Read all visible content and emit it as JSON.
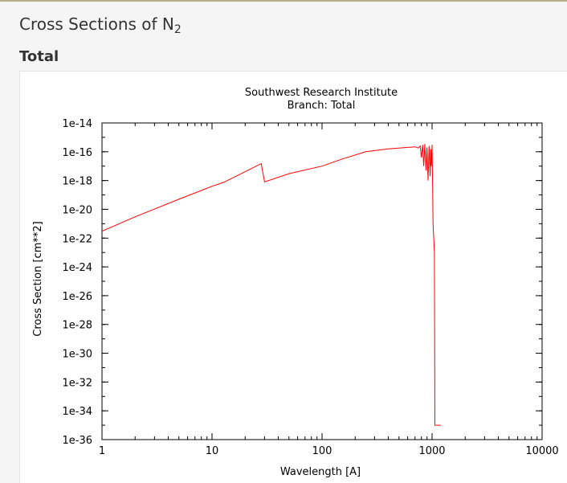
{
  "page": {
    "title_main": "Cross Sections of N",
    "title_sub": "2",
    "section": "Total"
  },
  "colors": {
    "series": "#ff0000",
    "axis": "#000000",
    "header_rule": "#b5ad86"
  },
  "chart_data": {
    "type": "line",
    "title": "Southwest Research Institute",
    "subtitle": "Branch: Total",
    "xlabel": "Wavelength [A]",
    "ylabel": "Cross Section [cm**2]",
    "xscale": "log",
    "yscale": "log",
    "xlim": [
      1,
      10000
    ],
    "ylim": [
      1e-36,
      1e-14
    ],
    "grid": false,
    "legend": "none",
    "x_ticks": [
      {
        "value": 1,
        "label": "1"
      },
      {
        "value": 10,
        "label": "10"
      },
      {
        "value": 100,
        "label": "100"
      },
      {
        "value": 1000,
        "label": "1000"
      },
      {
        "value": 10000,
        "label": "10000"
      }
    ],
    "y_ticks": [
      {
        "value": 1e-14,
        "label": "1e-14"
      },
      {
        "value": 1e-16,
        "label": "1e-16"
      },
      {
        "value": 1e-18,
        "label": "1e-18"
      },
      {
        "value": 1e-20,
        "label": "1e-20"
      },
      {
        "value": 1e-22,
        "label": "1e-22"
      },
      {
        "value": 1e-24,
        "label": "1e-24"
      },
      {
        "value": 1e-26,
        "label": "1e-26"
      },
      {
        "value": 1e-28,
        "label": "1e-28"
      },
      {
        "value": 1e-30,
        "label": "1e-30"
      },
      {
        "value": 1e-32,
        "label": "1e-32"
      },
      {
        "value": 1e-34,
        "label": "1e-34"
      },
      {
        "value": 1e-36,
        "label": "1e-36"
      }
    ],
    "series": [
      {
        "x": [
          1,
          2,
          5,
          10,
          13,
          28,
          30,
          50,
          100,
          150,
          250,
          400,
          600,
          700,
          750,
          780,
          800,
          820,
          840,
          860,
          880,
          900,
          920,
          940,
          960,
          975,
          985,
          1000,
          1010,
          1020,
          1050,
          1060,
          1200
        ],
        "y": [
          3e-22,
          3e-21,
          5e-20,
          4e-19,
          8e-19,
          1.5e-17,
          8e-19,
          3e-18,
          1e-17,
          3e-17,
          1e-16,
          1.6e-16,
          2e-16,
          2.2e-16,
          1.8e-16,
          2.5e-16,
          4e-17,
          3e-16,
          1e-17,
          3.5e-16,
          5e-18,
          2e-16,
          1e-18,
          2.5e-16,
          2e-18,
          1.5e-16,
          1e-17,
          3e-16,
          1e-18,
          1e-21,
          1e-23,
          1e-35,
          1e-35
        ]
      }
    ]
  }
}
